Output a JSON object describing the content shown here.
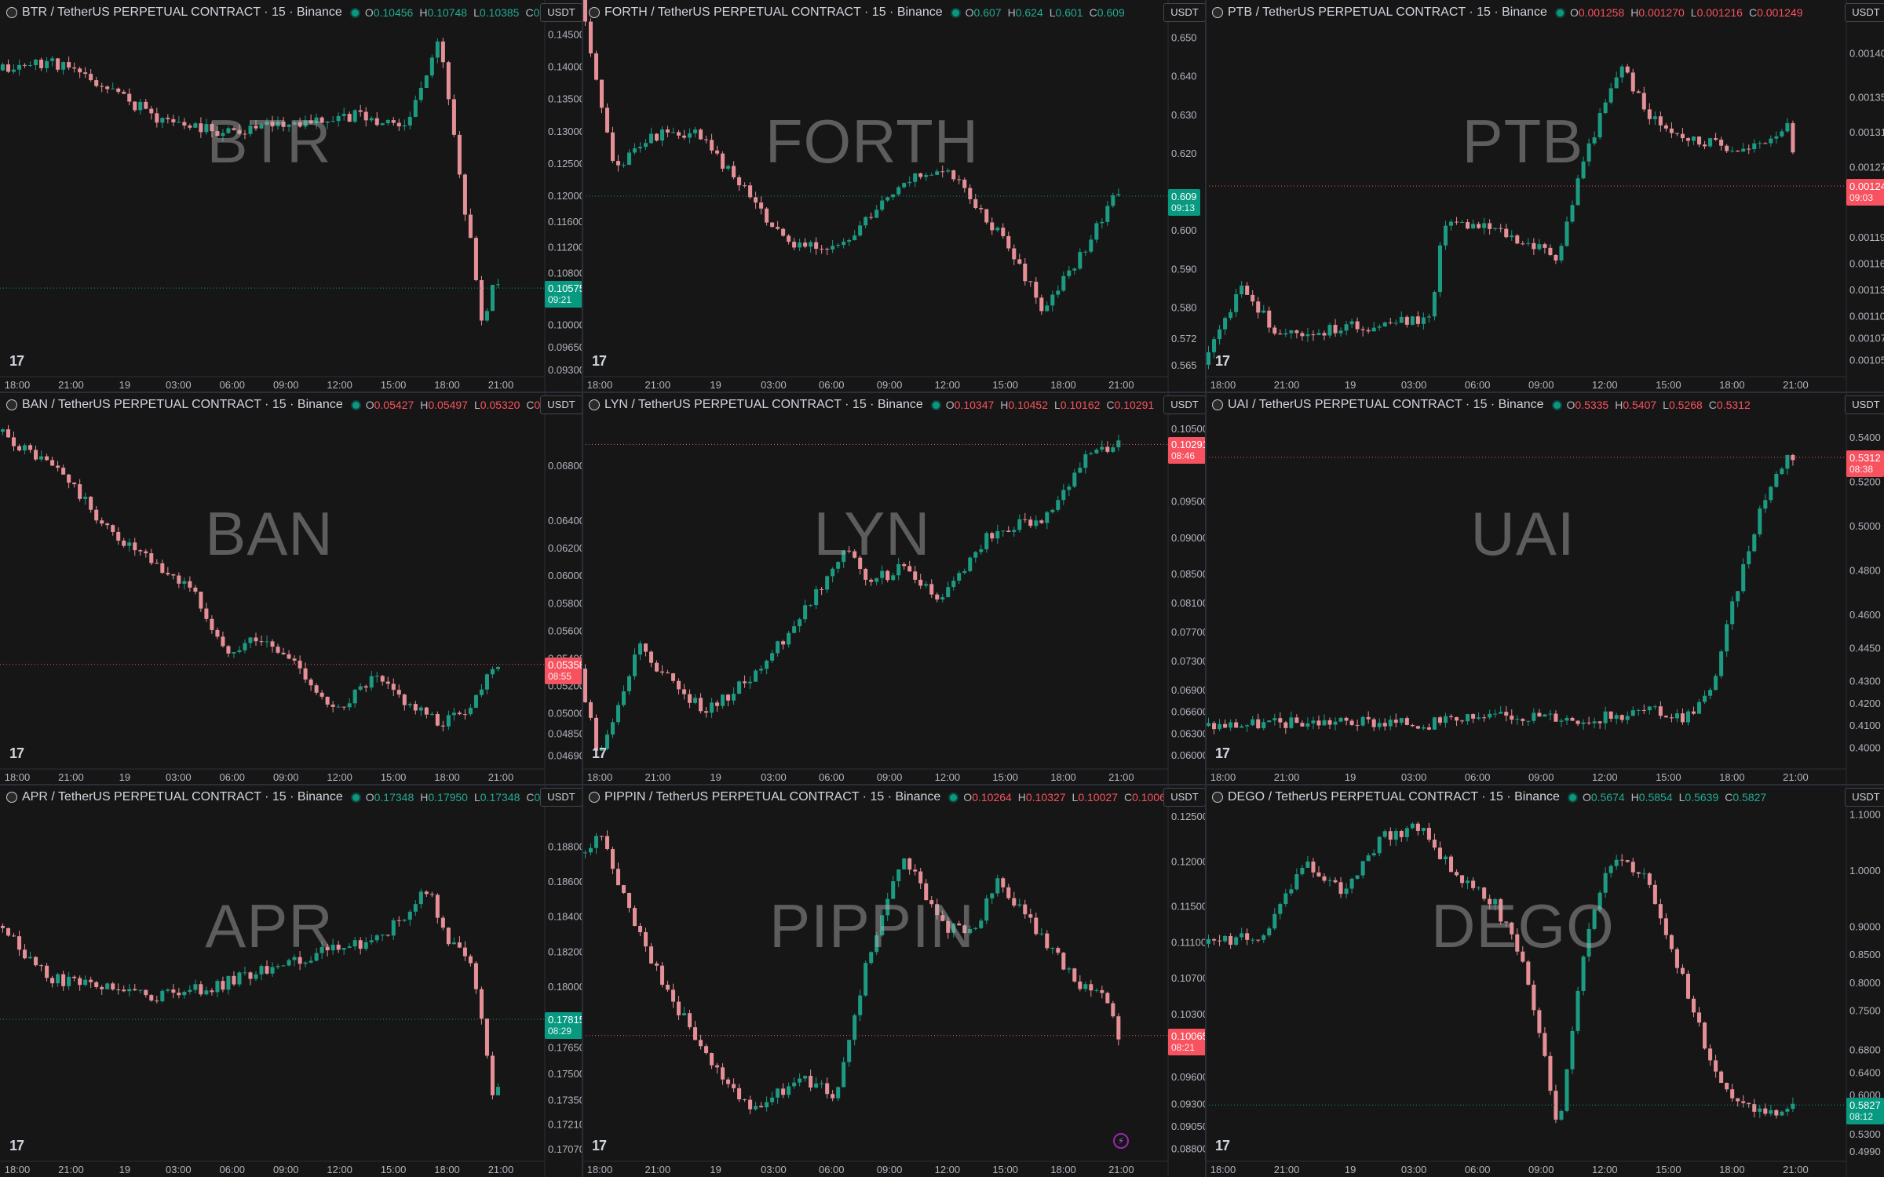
{
  "layout": {
    "cols": [
      0,
      742,
      1536,
      2400
    ],
    "rows": [
      0,
      500,
      1000,
      1500
    ],
    "chart_w": [
      740,
      790,
      816
    ],
    "axis_w": 48
  },
  "time_labels": [
    "18:00",
    "21:00",
    "19",
    "03:00",
    "06:00",
    "09:00",
    "12:00",
    "15:00",
    "18:00",
    "21:00"
  ],
  "currency_label": "USDT",
  "panes": [
    {
      "symbol": "BTR",
      "title": "BTR / TetherUS PERPETUAL CONTRACT · 15 · Binance",
      "o": "0.10456",
      "h": "0.10748",
      "l": "0.10385",
      "c": "0.10575",
      "last": "0.10575",
      "countdown": "09:21",
      "direction": "up",
      "price_min": 0.0925,
      "price_max": 0.1475,
      "ticks": [
        "0.14500",
        "0.14000",
        "0.13500",
        "0.13000",
        "0.12500",
        "0.12000",
        "0.11600",
        "0.11200",
        "0.10800",
        "0.10400",
        "0.10000",
        "0.09650",
        "0.09300"
      ],
      "tick_vals": [
        0.145,
        0.14,
        0.135,
        0.13,
        0.125,
        0.12,
        0.116,
        0.112,
        0.108,
        0.104,
        0.1,
        0.0965,
        0.093
      ],
      "path": [
        [
          0,
          0.1395
        ],
        [
          0.1,
          0.141
        ],
        [
          0.2,
          0.137
        ],
        [
          0.3,
          0.132
        ],
        [
          0.42,
          0.13
        ],
        [
          0.55,
          0.1315
        ],
        [
          0.66,
          0.1325
        ],
        [
          0.76,
          0.131
        ],
        [
          0.79,
          0.138
        ],
        [
          0.82,
          0.145
        ],
        [
          0.85,
          0.128
        ],
        [
          0.88,
          0.112
        ],
        [
          0.9,
          0.1
        ],
        [
          0.92,
          0.1058
        ]
      ],
      "seed": 11
    },
    {
      "symbol": "FORTH",
      "title": "FORTH / TetherUS PERPETUAL CONTRACT · 15 · Binance",
      "o": "0.607",
      "h": "0.624",
      "l": "0.601",
      "c": "0.609",
      "last": "0.609",
      "countdown": "09:13",
      "direction": "up",
      "price_min": 0.563,
      "price_max": 0.655,
      "ticks": [
        "0.650",
        "0.640",
        "0.630",
        "0.620",
        "0.609",
        "0.600",
        "0.590",
        "0.580",
        "0.572",
        "0.565"
      ],
      "tick_vals": [
        0.65,
        0.64,
        0.63,
        0.62,
        0.609,
        0.6,
        0.59,
        0.58,
        0.572,
        0.565
      ],
      "path": [
        [
          0,
          0.66
        ],
        [
          0.06,
          0.615
        ],
        [
          0.12,
          0.625
        ],
        [
          0.2,
          0.625
        ],
        [
          0.28,
          0.612
        ],
        [
          0.36,
          0.596
        ],
        [
          0.46,
          0.597
        ],
        [
          0.56,
          0.614
        ],
        [
          0.64,
          0.615
        ],
        [
          0.72,
          0.6
        ],
        [
          0.8,
          0.58
        ],
        [
          0.86,
          0.592
        ],
        [
          0.92,
          0.609
        ]
      ],
      "seed": 23
    },
    {
      "symbol": "PTB",
      "title": "PTB / TetherUS PERPETUAL CONTRACT · 15 · Binance",
      "o": "0.001258",
      "h": "0.001270",
      "l": "0.001216",
      "c": "0.001249",
      "last": "0.001249",
      "countdown": "09:03",
      "direction": "dn",
      "price_min": 0.001035,
      "price_max": 0.00144,
      "ticks": [
        "0.001400",
        "0.001350",
        "0.001310",
        "0.001270",
        "0.001249",
        "0.001190",
        "0.001160",
        "0.001130",
        "0.001100",
        "0.001075",
        "0.001050"
      ],
      "tick_vals": [
        0.0014,
        0.00135,
        0.00131,
        0.00127,
        0.001249,
        0.00119,
        0.00116,
        0.00113,
        0.0011,
        0.001075,
        0.00105
      ],
      "path": [
        [
          0,
          0.001045
        ],
        [
          0.06,
          0.00113
        ],
        [
          0.12,
          0.00108
        ],
        [
          0.26,
          0.00109
        ],
        [
          0.36,
          0.0011
        ],
        [
          0.38,
          0.00121
        ],
        [
          0.46,
          0.0012
        ],
        [
          0.56,
          0.00117
        ],
        [
          0.6,
          0.00128
        ],
        [
          0.66,
          0.00139
        ],
        [
          0.7,
          0.00133
        ],
        [
          0.78,
          0.0013
        ],
        [
          0.86,
          0.00129
        ],
        [
          0.92,
          0.00132
        ],
        [
          0.94,
          0.00125
        ]
      ],
      "seed": 37
    },
    {
      "symbol": "BAN",
      "title": "BAN / TetherUS PERPETUAL CONTRACT · 15 · Binance",
      "o": "0.05427",
      "h": "0.05497",
      "l": "0.05320",
      "c": "0.05358",
      "last": "0.05358",
      "countdown": "08:55",
      "direction": "dn",
      "price_min": 0.0462,
      "price_max": 0.072,
      "ticks": [
        "0.06800",
        "0.06400",
        "0.06200",
        "0.06000",
        "0.05800",
        "0.05600",
        "0.05400",
        "0.05200",
        "0.05000",
        "0.04850",
        "0.04690"
      ],
      "tick_vals": [
        0.068,
        0.064,
        0.062,
        0.06,
        0.058,
        0.056,
        0.054,
        0.052,
        0.05,
        0.0485,
        0.0469
      ],
      "path": [
        [
          0,
          0.0705
        ],
        [
          0.06,
          0.069
        ],
        [
          0.12,
          0.0675
        ],
        [
          0.2,
          0.0635
        ],
        [
          0.3,
          0.0605
        ],
        [
          0.36,
          0.0592
        ],
        [
          0.42,
          0.0545
        ],
        [
          0.48,
          0.0555
        ],
        [
          0.56,
          0.0535
        ],
        [
          0.62,
          0.05
        ],
        [
          0.7,
          0.0525
        ],
        [
          0.76,
          0.0508
        ],
        [
          0.82,
          0.0492
        ],
        [
          0.88,
          0.0505
        ],
        [
          0.92,
          0.0536
        ]
      ],
      "seed": 41
    },
    {
      "symbol": "LYN",
      "title": "LYN / TetherUS PERPETUAL CONTRACT · 15 · Binance",
      "o": "0.10347",
      "h": "0.10452",
      "l": "0.10162",
      "c": "0.10291",
      "last": "0.10291",
      "countdown": "08:46",
      "direction": "dn",
      "price_min": 0.0586,
      "price_max": 0.1075,
      "ticks": [
        "0.10500",
        "0.09500",
        "0.09000",
        "0.08500",
        "0.08100",
        "0.07700",
        "0.07300",
        "0.06900",
        "0.06600",
        "0.06300",
        "0.06000"
      ],
      "tick_vals": [
        0.105,
        0.095,
        0.09,
        0.085,
        0.081,
        0.077,
        0.073,
        0.069,
        0.066,
        0.063,
        0.06
      ],
      "path": [
        [
          0,
          0.072
        ],
        [
          0.03,
          0.06
        ],
        [
          0.06,
          0.066
        ],
        [
          0.1,
          0.075
        ],
        [
          0.16,
          0.07
        ],
        [
          0.22,
          0.066
        ],
        [
          0.3,
          0.071
        ],
        [
          0.38,
          0.079
        ],
        [
          0.46,
          0.089
        ],
        [
          0.5,
          0.084
        ],
        [
          0.56,
          0.086
        ],
        [
          0.62,
          0.081
        ],
        [
          0.7,
          0.09
        ],
        [
          0.8,
          0.093
        ],
        [
          0.88,
          0.1015
        ],
        [
          0.93,
          0.1029
        ]
      ],
      "seed": 53
    },
    {
      "symbol": "UAI",
      "title": "UAI / TetherUS PERPETUAL CONTRACT · 15 · Binance",
      "o": "0.5335",
      "h": "0.5407",
      "l": "0.5268",
      "c": "0.5312",
      "last": "0.5312",
      "countdown": "08:38",
      "direction": "dn",
      "price_min": 0.392,
      "price_max": 0.552,
      "ticks": [
        "0.5400",
        "0.5200",
        "0.5000",
        "0.4800",
        "0.4600",
        "0.4450",
        "0.4300",
        "0.4200",
        "0.4100",
        "0.4000"
      ],
      "tick_vals": [
        0.54,
        0.52,
        0.5,
        0.48,
        0.46,
        0.445,
        0.43,
        0.42,
        0.41,
        0.4
      ],
      "path": [
        [
          0,
          0.41
        ],
        [
          0.2,
          0.412
        ],
        [
          0.36,
          0.411
        ],
        [
          0.5,
          0.415
        ],
        [
          0.62,
          0.413
        ],
        [
          0.7,
          0.417
        ],
        [
          0.76,
          0.414
        ],
        [
          0.8,
          0.425
        ],
        [
          0.84,
          0.47
        ],
        [
          0.88,
          0.51
        ],
        [
          0.92,
          0.532
        ]
      ],
      "seed": 67
    },
    {
      "symbol": "APR",
      "title": "APR / TetherUS PERPETUAL CONTRACT · 15 · Binance",
      "o": "0.17348",
      "h": "0.17950",
      "l": "0.17348",
      "c": "0.17815",
      "last": "0.17815",
      "countdown": "08:29",
      "direction": "up",
      "price_min": 0.1702,
      "price_max": 0.1905,
      "ticks": [
        "0.18800",
        "0.18600",
        "0.18400",
        "0.18200",
        "0.18000",
        "0.17815",
        "0.17650",
        "0.17500",
        "0.17350",
        "0.17210",
        "0.17070"
      ],
      "tick_vals": [
        0.188,
        0.186,
        0.184,
        0.182,
        0.18,
        0.17815,
        0.1765,
        0.175,
        0.1735,
        0.1721,
        0.1707
      ],
      "path": [
        [
          0,
          0.1835
        ],
        [
          0.1,
          0.1805
        ],
        [
          0.2,
          0.18
        ],
        [
          0.3,
          0.1795
        ],
        [
          0.4,
          0.18
        ],
        [
          0.5,
          0.181
        ],
        [
          0.6,
          0.182
        ],
        [
          0.7,
          0.1825
        ],
        [
          0.8,
          0.1855
        ],
        [
          0.84,
          0.1825
        ],
        [
          0.88,
          0.1815
        ],
        [
          0.92,
          0.174
        ]
      ],
      "seed": 79
    },
    {
      "symbol": "PIPPIN",
      "title": "PIPPIN / TetherUS PERPETUAL CONTRACT · 15 · Binance",
      "o": "0.10264",
      "h": "0.10327",
      "l": "0.10027",
      "c": "0.10065",
      "last": "0.10065",
      "countdown": "08:21",
      "direction": "dn",
      "price_min": 0.087,
      "price_max": 0.1265,
      "ticks": [
        "0.12500",
        "0.12000",
        "0.11500",
        "0.11100",
        "0.10700",
        "0.10300",
        "0.10065",
        "0.09600",
        "0.09300",
        "0.09050",
        "0.08800"
      ],
      "tick_vals": [
        0.125,
        0.12,
        0.115,
        0.111,
        0.107,
        0.103,
        0.10065,
        0.096,
        0.093,
        0.0905,
        0.088
      ],
      "path": [
        [
          0,
          0.121
        ],
        [
          0.04,
          0.1235
        ],
        [
          0.08,
          0.115
        ],
        [
          0.14,
          0.107
        ],
        [
          0.22,
          0.098
        ],
        [
          0.3,
          0.092
        ],
        [
          0.38,
          0.096
        ],
        [
          0.44,
          0.094
        ],
        [
          0.5,
          0.11
        ],
        [
          0.56,
          0.121
        ],
        [
          0.62,
          0.113
        ],
        [
          0.68,
          0.112
        ],
        [
          0.72,
          0.118
        ],
        [
          0.78,
          0.113
        ],
        [
          0.86,
          0.1065
        ],
        [
          0.9,
          0.106
        ],
        [
          0.93,
          0.1006
        ]
      ],
      "seed": 89
    },
    {
      "symbol": "DEGO",
      "title": "DEGO / TetherUS PERPETUAL CONTRACT · 15 · Binance",
      "o": "0.5674",
      "h": "0.5854",
      "l": "0.5639",
      "c": "0.5827",
      "last": "0.5827",
      "countdown": "08:12",
      "direction": "up",
      "price_min": 0.488,
      "price_max": 1.12,
      "ticks": [
        "1.1000",
        "1.0000",
        "0.9000",
        "0.8500",
        "0.8000",
        "0.7500",
        "0.6800",
        "0.6400",
        "0.6000",
        "0.5827",
        "0.5300",
        "0.4990"
      ],
      "tick_vals": [
        1.1,
        1.0,
        0.9,
        0.85,
        0.8,
        0.75,
        0.68,
        0.64,
        0.6,
        0.5827,
        0.53,
        0.499
      ],
      "path": [
        [
          0,
          0.87
        ],
        [
          0.1,
          0.89
        ],
        [
          0.16,
          1.02
        ],
        [
          0.22,
          0.96
        ],
        [
          0.28,
          1.06
        ],
        [
          0.34,
          1.08
        ],
        [
          0.4,
          0.99
        ],
        [
          0.46,
          0.94
        ],
        [
          0.5,
          0.85
        ],
        [
          0.53,
          0.72
        ],
        [
          0.56,
          0.54
        ],
        [
          0.6,
          0.86
        ],
        [
          0.64,
          1.02
        ],
        [
          0.7,
          0.99
        ],
        [
          0.74,
          0.86
        ],
        [
          0.8,
          0.66
        ],
        [
          0.84,
          0.58
        ],
        [
          0.9,
          0.57
        ],
        [
          0.92,
          0.583
        ]
      ],
      "seed": 97
    }
  ]
}
